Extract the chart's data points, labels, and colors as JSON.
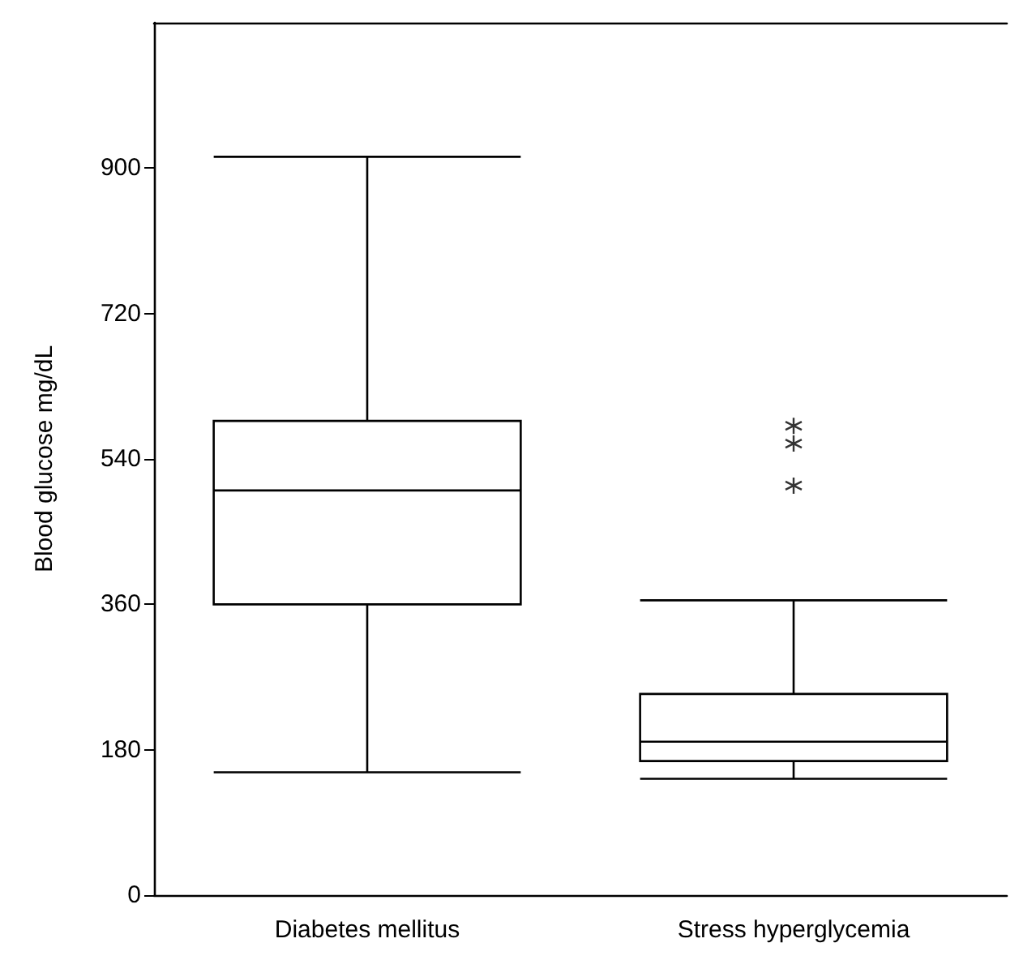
{
  "chart_data": {
    "type": "box",
    "ylabel": "Blood glucose mg/dL",
    "categories": [
      "Diabetes mellitus",
      "Stress hyperglycemia"
    ],
    "boxes": [
      {
        "low": 152,
        "q1": 360,
        "median": 501,
        "q3": 587,
        "high": 914
      },
      {
        "low": 144,
        "q1": 166,
        "median": 190,
        "q3": 249,
        "high": 365,
        "outliers": [
          507,
          559,
          581
        ]
      }
    ],
    "color": "#000000",
    "ylim": [
      0,
      1080
    ],
    "yticks": [
      0,
      180,
      360,
      540,
      720,
      900
    ],
    "grid": false
  }
}
